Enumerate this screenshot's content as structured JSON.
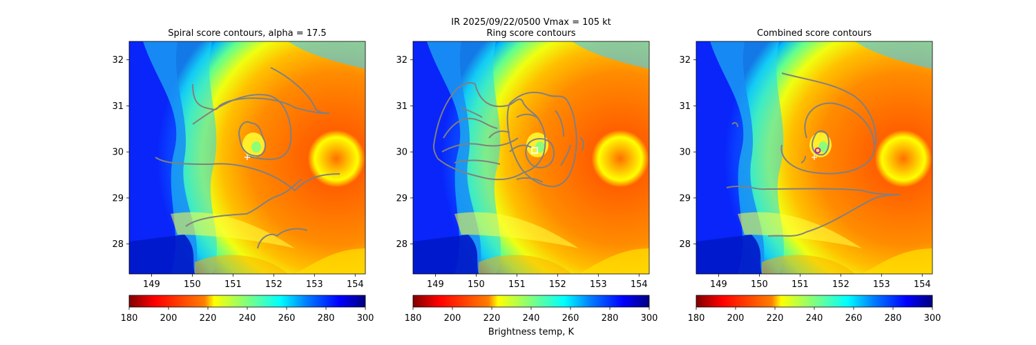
{
  "figure": {
    "suptitle": "IR  2025/09/22/0500    Vmax = 105 kt",
    "colorbar_label": "Brightness temp, K"
  },
  "chart_data": [
    {
      "type": "heatmap",
      "title": "Spiral score contours, alpha = 17.5",
      "x_ticks": [
        "149",
        "150",
        "151",
        "152",
        "153",
        "154"
      ],
      "y_ticks": [
        "28",
        "29",
        "30",
        "31",
        "32"
      ],
      "xlim": [
        148.45,
        154.25
      ],
      "ylim": [
        27.35,
        32.4
      ],
      "colorbar": {
        "label": "Brightness temp, K",
        "range": [
          180,
          300
        ],
        "ticks": [
          "180",
          "200",
          "220",
          "240",
          "260",
          "280",
          "300"
        ],
        "colormap": "jet_r"
      },
      "markers": [
        {
          "kind": "best-track-plus",
          "lon": 151.3,
          "lat": 29.87,
          "color": "#ffffff"
        }
      ],
      "contour_color": "#808080"
    },
    {
      "type": "heatmap",
      "title": "Ring score contours",
      "x_ticks": [
        "149",
        "150",
        "151",
        "152",
        "153",
        "154"
      ],
      "y_ticks": [
        "28",
        "29",
        "30",
        "31",
        "32"
      ],
      "xlim": [
        148.45,
        154.25
      ],
      "ylim": [
        27.35,
        32.4
      ],
      "colorbar": {
        "label": "Brightness temp, K",
        "range": [
          180,
          300
        ],
        "ticks": [
          "180",
          "200",
          "220",
          "240",
          "260",
          "280",
          "300"
        ],
        "colormap": "jet_r"
      },
      "markers": [
        {
          "kind": "ring-center-square",
          "lon": 151.38,
          "lat": 30.02,
          "color": "#ffffff"
        }
      ],
      "contour_color": "#808080"
    },
    {
      "type": "heatmap",
      "title": "Combined score contours",
      "x_ticks": [
        "149",
        "150",
        "151",
        "152",
        "153",
        "154"
      ],
      "y_ticks": [
        "28",
        "29",
        "30",
        "31",
        "32"
      ],
      "xlim": [
        148.45,
        154.25
      ],
      "ylim": [
        27.35,
        32.4
      ],
      "colorbar": {
        "label": "Brightness temp, K",
        "range": [
          180,
          300
        ],
        "ticks": [
          "180",
          "200",
          "220",
          "240",
          "260",
          "280",
          "300"
        ],
        "colormap": "jet_r"
      },
      "markers": [
        {
          "kind": "best-track-plus",
          "lon": 151.3,
          "lat": 29.87,
          "color": "#ffffff"
        },
        {
          "kind": "combined-center-circle",
          "lon": 151.4,
          "lat": 30.04,
          "color": "#cc00cc"
        }
      ],
      "contour_color": "#808080"
    }
  ],
  "colors": {
    "contour": "#808080",
    "jet": [
      "#7f0000",
      "#ff0000",
      "#ff7f00",
      "#ffff00",
      "#7fff7f",
      "#00ffff",
      "#007fff",
      "#0000ff",
      "#00007f"
    ]
  }
}
